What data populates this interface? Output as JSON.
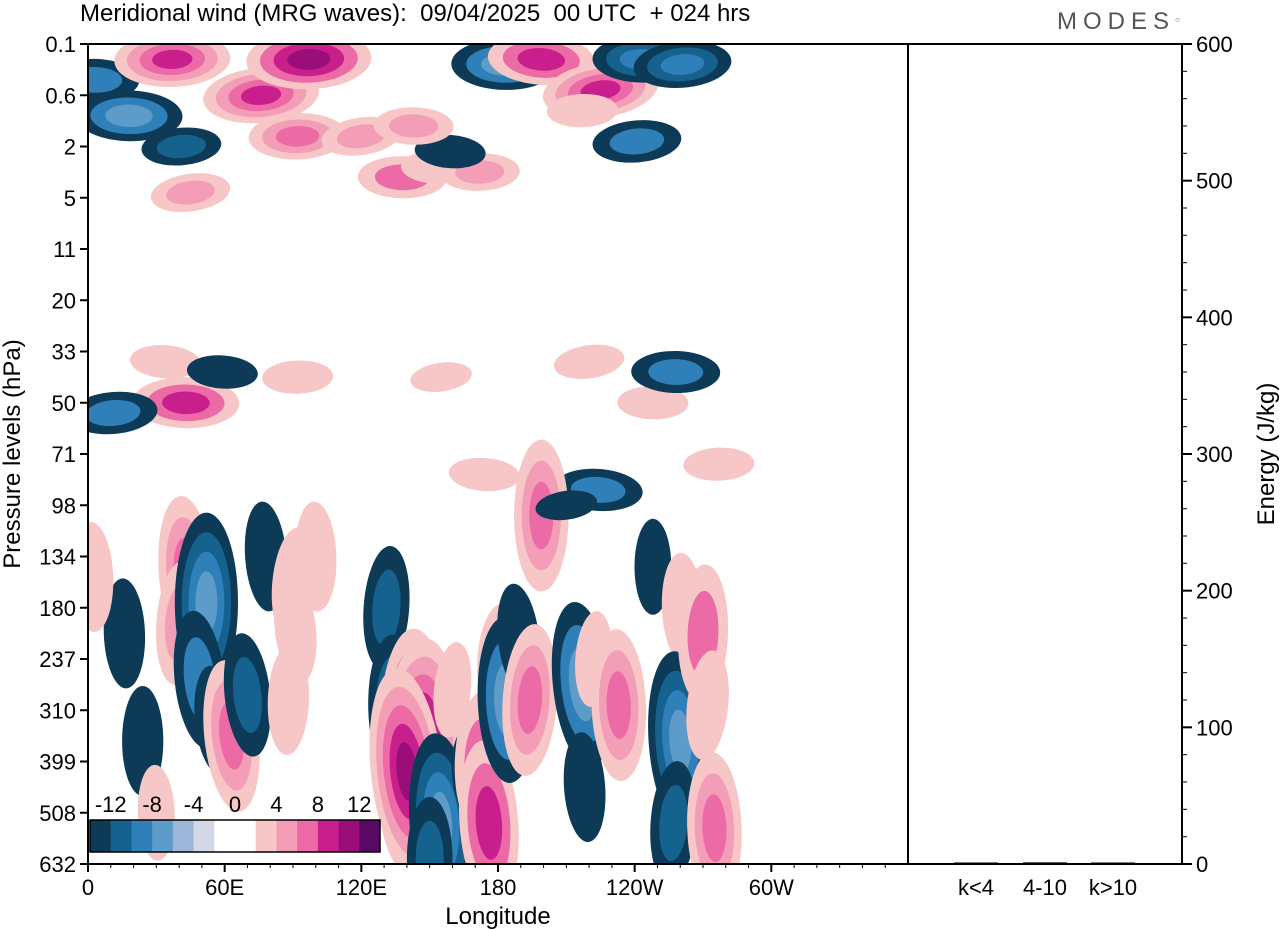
{
  "header": {
    "title": "Meridional wind (MRG waves):  09/04/2025  00 UTC  + 024 hrs",
    "logo": "MODES"
  },
  "colors": {
    "neg": [
      "#0d3b57",
      "#15628f",
      "#2f7fb8",
      "#5d9bc9",
      "#9db7d8",
      "#d4d7e8"
    ],
    "pos": [
      "#f6c7c6",
      "#f49db7",
      "#ec6aa6",
      "#c91f8c",
      "#9a0e79",
      "#5a0866"
    ]
  },
  "chart_data": [
    {
      "type": "heatmap",
      "title": "Meridional wind (MRG waves):  09/04/2025  00 UTC  + 024 hrs",
      "xlabel": "Longitude",
      "ylabel": "Pressure levels (hPa)",
      "x_ticks": [
        "0",
        "60E",
        "120E",
        "180",
        "120W",
        "60W"
      ],
      "y_ticks": [
        "0.1",
        "0.6",
        "2",
        "5",
        "11",
        "20",
        "33",
        "50",
        "71",
        "98",
        "134",
        "180",
        "237",
        "310",
        "399",
        "508",
        "632"
      ],
      "colorbar": {
        "levels": [
          "-12",
          "-8",
          "-4",
          "0",
          "4",
          "8",
          "12"
        ],
        "min": -14,
        "max": 14
      },
      "blobs": [
        {
          "lon": 3,
          "lev": 0.7,
          "v": -5
        },
        {
          "lon": 18,
          "lev": 1.4,
          "v": -7
        },
        {
          "lon": 37,
          "lev": 0.3,
          "v": 8
        },
        {
          "lon": 41,
          "lev": 2.0,
          "v": -4
        },
        {
          "lon": 76,
          "lev": 1.0,
          "v": 8
        },
        {
          "lon": 45,
          "lev": 2.9,
          "v": 4
        },
        {
          "lon": 97,
          "lev": 0.3,
          "v": 9
        },
        {
          "lon": 92,
          "lev": 1.8,
          "v": 6
        },
        {
          "lon": 120,
          "lev": 1.8,
          "v": 4
        },
        {
          "lon": 138,
          "lev": 2.6,
          "v": 5
        },
        {
          "lon": 153,
          "lev": 2.4,
          "v": 3
        },
        {
          "lon": 172,
          "lev": 2.5,
          "v": 4
        },
        {
          "lon": 183,
          "lev": 0.4,
          "v": -7
        },
        {
          "lon": 199,
          "lev": 0.3,
          "v": 7
        },
        {
          "lon": 225,
          "lev": 0.9,
          "v": 8
        },
        {
          "lon": 243,
          "lev": 0.3,
          "v": -6
        },
        {
          "lon": 261,
          "lev": 0.4,
          "v": -6
        },
        {
          "lon": 217,
          "lev": 1.3,
          "v": 3
        },
        {
          "lon": 159,
          "lev": 2.1,
          "v": -3
        },
        {
          "lon": 143,
          "lev": 1.6,
          "v": 4
        },
        {
          "lon": 241,
          "lev": 1.9,
          "v": -5
        },
        {
          "lon": 34,
          "lev": 6.2,
          "v": 3
        },
        {
          "lon": 43,
          "lev": 7.0,
          "v": 7
        },
        {
          "lon": 11,
          "lev": 7.2,
          "v": -5
        },
        {
          "lon": 59,
          "lev": 6.4,
          "v": -3
        },
        {
          "lon": 92,
          "lev": 6.5,
          "v": 3
        },
        {
          "lon": 155,
          "lev": 6.5,
          "v": 2
        },
        {
          "lon": 220,
          "lev": 6.2,
          "v": 3
        },
        {
          "lon": 248,
          "lev": 7.0,
          "v": 3
        },
        {
          "lon": 258,
          "lev": 6.4,
          "v": -5
        },
        {
          "lon": 224,
          "lev": 8.7,
          "v": -5
        },
        {
          "lon": 277,
          "lev": 8.2,
          "v": 3
        },
        {
          "lon": 43,
          "lev": 10.3,
          "v": 6
        },
        {
          "lon": 40,
          "lev": 11.3,
          "v": 4
        },
        {
          "lon": 52,
          "lev": 10.9,
          "v": -8
        },
        {
          "lon": 49,
          "lev": 12.4,
          "v": -5
        },
        {
          "lon": 56,
          "lev": 13.2,
          "v": -3
        },
        {
          "lon": 63,
          "lev": 13.5,
          "v": 6
        },
        {
          "lon": 16,
          "lev": 11.5,
          "v": -3
        },
        {
          "lon": 78,
          "lev": 10.0,
          "v": -3
        },
        {
          "lon": 70,
          "lev": 12.7,
          "v": -4
        },
        {
          "lon": 90,
          "lev": 10.5,
          "v": 3
        },
        {
          "lon": 100,
          "lev": 10.0,
          "v": 3
        },
        {
          "lon": 88,
          "lev": 12.8,
          "v": 3
        },
        {
          "lon": 91,
          "lev": 11.4,
          "v": 3
        },
        {
          "lon": 131,
          "lev": 11.0,
          "v": -4
        },
        {
          "lon": 135,
          "lev": 13.0,
          "v": -6
        },
        {
          "lon": 143,
          "lev": 13.3,
          "v": 9
        },
        {
          "lon": 145,
          "lev": 13.9,
          "v": 12
        },
        {
          "lon": 140,
          "lev": 14.2,
          "v": 10
        },
        {
          "lon": 155,
          "lev": 15.2,
          "v": -8
        },
        {
          "lon": 150,
          "lev": 15.9,
          "v": -4
        },
        {
          "lon": 168,
          "lev": 14.3,
          "v": -2
        },
        {
          "lon": 174,
          "lev": 8.4,
          "v": 3
        },
        {
          "lon": 180,
          "lev": 12.0,
          "v": 3
        },
        {
          "lon": 172,
          "lev": 14.0,
          "v": 5
        },
        {
          "lon": 176,
          "lev": 15.2,
          "v": 7
        },
        {
          "lon": 184,
          "lev": 12.8,
          "v": -7
        },
        {
          "lon": 189,
          "lev": 11.6,
          "v": -3
        },
        {
          "lon": 194,
          "lev": 12.8,
          "v": 6
        },
        {
          "lon": 199,
          "lev": 9.2,
          "v": 6
        },
        {
          "lon": 210,
          "lev": 9.0,
          "v": -2
        },
        {
          "lon": 217,
          "lev": 12.5,
          "v": -7
        },
        {
          "lon": 218,
          "lev": 14.5,
          "v": -3
        },
        {
          "lon": 222,
          "lev": 12.0,
          "v": 2
        },
        {
          "lon": 233,
          "lev": 12.9,
          "v": 6
        },
        {
          "lon": 248,
          "lev": 10.2,
          "v": -2
        },
        {
          "lon": 261,
          "lev": 11.0,
          "v": 3
        },
        {
          "lon": 260,
          "lev": 13.6,
          "v": -8
        },
        {
          "lon": 257,
          "lev": 15.2,
          "v": -4
        },
        {
          "lon": 270,
          "lev": 11.5,
          "v": 5
        },
        {
          "lon": 272,
          "lev": 12.9,
          "v": 3
        },
        {
          "lon": 275,
          "lev": 15.3,
          "v": 6
        },
        {
          "lon": 160,
          "lev": 12.6,
          "v": 2
        },
        {
          "lon": 24,
          "lev": 13.6,
          "v": -3
        },
        {
          "lon": 30,
          "lev": 15.0,
          "v": 2
        },
        {
          "lon": 2,
          "lev": 10.4,
          "v": 3
        }
      ]
    },
    {
      "type": "bar",
      "categories": [
        "k<4",
        "4-10",
        "k>10"
      ],
      "values": [
        0.5,
        1.2,
        0.4
      ],
      "ylabel": "Energy (J/kg)",
      "y_ticks": [
        "0",
        "100",
        "200",
        "300",
        "400",
        "500",
        "600"
      ],
      "ylim": [
        0,
        600
      ]
    }
  ]
}
